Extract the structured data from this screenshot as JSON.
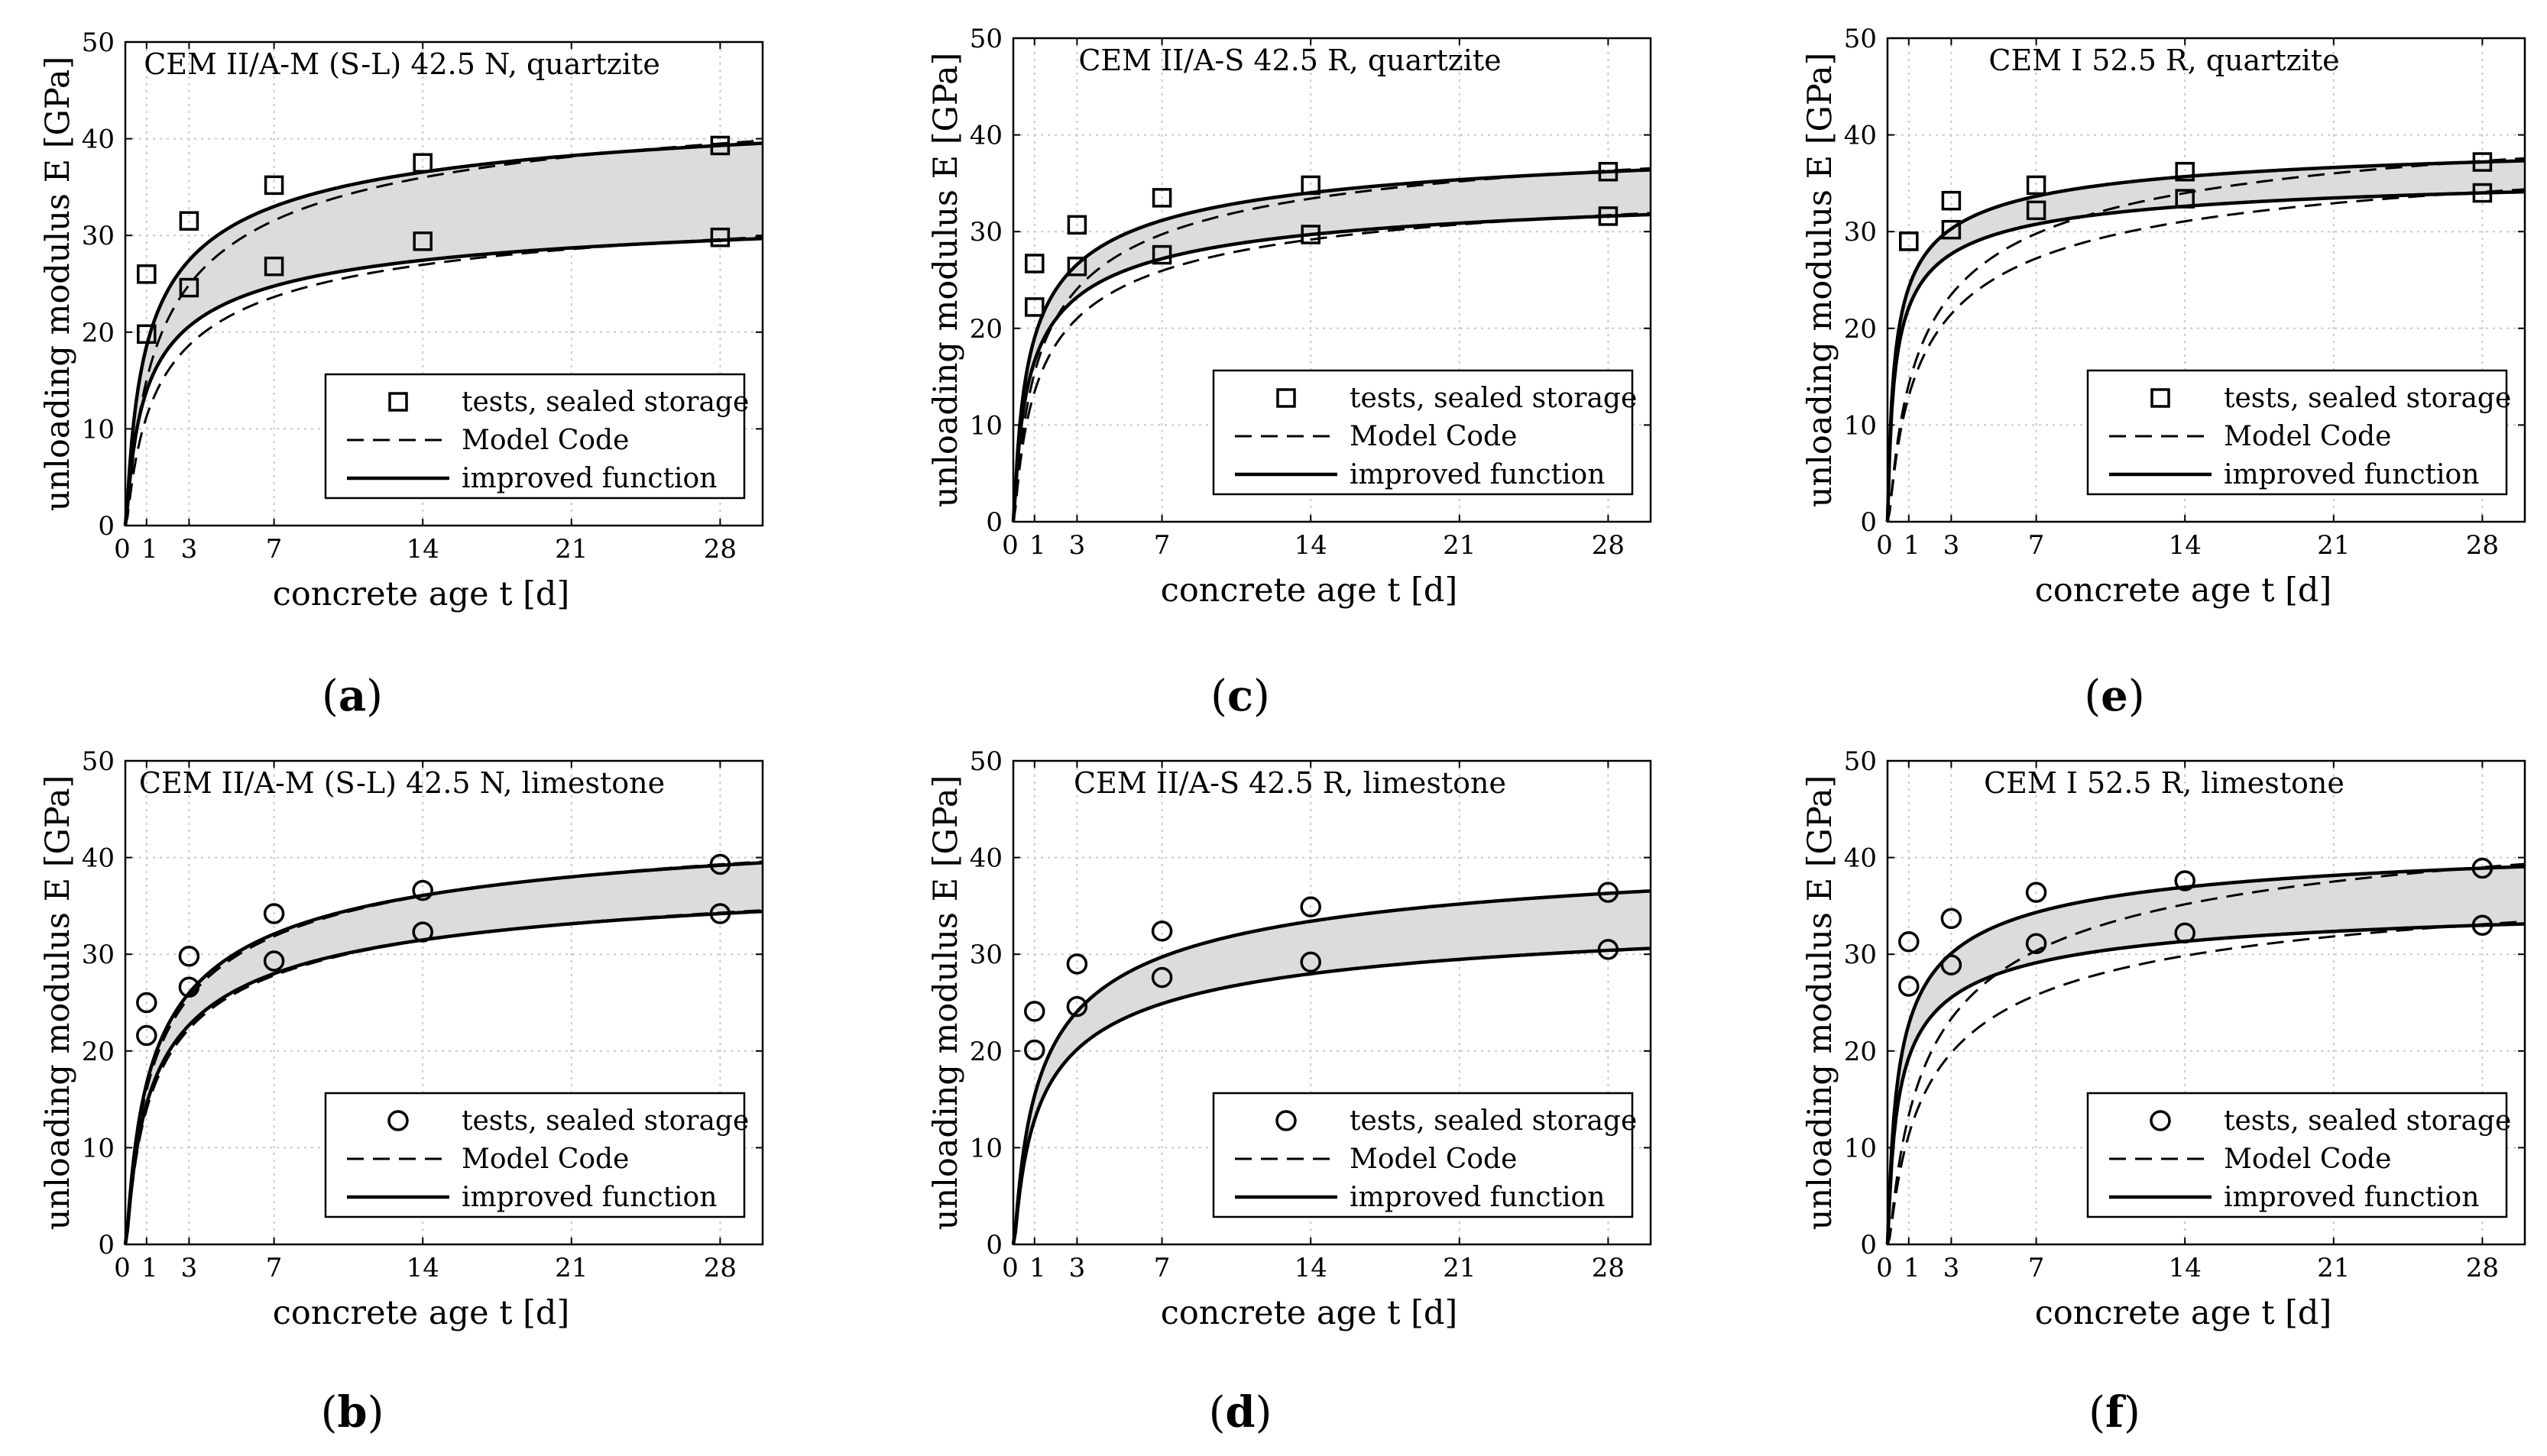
{
  "figure": {
    "legend_labels": {
      "tests": "tests, sealed storage",
      "model_code": "Model Code",
      "improved": "improved function"
    }
  },
  "chart_data": [
    {
      "id": "a",
      "type": "line",
      "panel_label": "(a)",
      "label_letter": "a",
      "title": "CEM II/A-M (S-L) 42.5 N, quartzite",
      "xlabel": "concrete age t [d]",
      "ylabel": "unloading modulus E [GPa]",
      "xlim": [
        0,
        30
      ],
      "ylim": [
        0,
        50
      ],
      "xticks": [
        0,
        1,
        3,
        7,
        14,
        21,
        28
      ],
      "yticks": [
        0,
        10,
        20,
        30,
        40,
        50
      ],
      "grid": true,
      "legend_position": "lower-right",
      "marker": "square",
      "series": [
        {
          "name": "tests, sealed storage (upper)",
          "x": [
            1,
            3,
            7,
            14,
            28
          ],
          "y": [
            26,
            31.5,
            35.2,
            37.5,
            39.3
          ]
        },
        {
          "name": "tests, sealed storage (lower)",
          "x": [
            1,
            3,
            7,
            14,
            28
          ],
          "y": [
            19.8,
            24.6,
            26.8,
            29.4,
            29.8
          ]
        }
      ],
      "curves": {
        "improved": [
          {
            "E28": 39.3,
            "s": 0.35
          },
          {
            "E28": 29.5,
            "s": 0.35
          }
        ],
        "model_code": [
          {
            "E28": 39.5,
            "s": 0.45
          },
          {
            "E28": 29.6,
            "s": 0.45
          }
        ]
      }
    },
    {
      "id": "c",
      "type": "line",
      "panel_label": "(c)",
      "label_letter": "c",
      "title": "CEM II/A-S 42.5 R, quartzite",
      "xlabel": "concrete age t [d]",
      "ylabel": "unloading modulus E [GPa]",
      "xlim": [
        0,
        30
      ],
      "ylim": [
        0,
        50
      ],
      "xticks": [
        0,
        1,
        3,
        7,
        14,
        21,
        28
      ],
      "yticks": [
        0,
        10,
        20,
        30,
        40,
        50
      ],
      "grid": true,
      "legend_position": "lower-right",
      "marker": "square",
      "series": [
        {
          "name": "tests, sealed storage (upper)",
          "x": [
            1,
            3,
            7,
            14,
            28
          ],
          "y": [
            26.7,
            30.7,
            33.5,
            34.8,
            36.2
          ]
        },
        {
          "name": "tests, sealed storage (lower)",
          "x": [
            1,
            3,
            7,
            14,
            28
          ],
          "y": [
            22.2,
            26.4,
            27.6,
            29.7,
            31.6
          ]
        }
      ],
      "curves": {
        "improved": [
          {
            "E28": 36.2,
            "s": 0.3
          },
          {
            "E28": 31.6,
            "s": 0.3
          }
        ],
        "model_code": [
          {
            "E28": 36.3,
            "s": 0.4
          },
          {
            "E28": 31.7,
            "s": 0.4
          }
        ]
      }
    },
    {
      "id": "e",
      "type": "line",
      "panel_label": "(e)",
      "label_letter": "e",
      "title": "CEM I 52.5 R, quartzite",
      "xlabel": "concrete age t [d]",
      "ylabel": "unloading modulus E [GPa]",
      "xlim": [
        0,
        30
      ],
      "ylim": [
        0,
        50
      ],
      "xticks": [
        0,
        1,
        3,
        7,
        14,
        21,
        28
      ],
      "yticks": [
        0,
        10,
        20,
        30,
        40,
        50
      ],
      "grid": true,
      "legend_position": "lower-right",
      "marker": "square",
      "series": [
        {
          "name": "tests, sealed storage (upper)",
          "x": [
            1,
            3,
            7,
            14,
            28
          ],
          "y": [
            29,
            33.2,
            34.8,
            36.2,
            37.2
          ]
        },
        {
          "name": "tests, sealed storage (lower)",
          "x": [
            1,
            3,
            7,
            14,
            28
          ],
          "y": [
            29,
            30.2,
            32.2,
            33.4,
            34
          ]
        }
      ],
      "curves": {
        "improved": [
          {
            "E28": 37.2,
            "s": 0.2
          },
          {
            "E28": 34.0,
            "s": 0.2
          }
        ],
        "model_code": [
          {
            "E28": 37.3,
            "s": 0.45
          },
          {
            "E28": 34.1,
            "s": 0.45
          }
        ]
      }
    },
    {
      "id": "b",
      "type": "line",
      "panel_label": "(b)",
      "label_letter": "b",
      "title": "CEM II/A-M (S-L) 42.5 N, limestone",
      "xlabel": "concrete age t [d]",
      "ylabel": "unloading modulus E [GPa]",
      "xlim": [
        0,
        30
      ],
      "ylim": [
        0,
        50
      ],
      "xticks": [
        0,
        1,
        3,
        7,
        14,
        21,
        28
      ],
      "yticks": [
        0,
        10,
        20,
        30,
        40,
        50
      ],
      "grid": true,
      "legend_position": "lower-right",
      "marker": "circle",
      "series": [
        {
          "name": "tests, sealed storage (upper)",
          "x": [
            1,
            3,
            7,
            14,
            28
          ],
          "y": [
            25,
            29.8,
            34.2,
            36.6,
            39.3
          ]
        },
        {
          "name": "tests, sealed storage (lower)",
          "x": [
            1,
            3,
            7,
            14,
            28
          ],
          "y": [
            21.6,
            26.6,
            29.3,
            32.3,
            34.2
          ]
        }
      ],
      "curves": {
        "improved": [
          {
            "E28": 39.2,
            "s": 0.4
          },
          {
            "E28": 34.2,
            "s": 0.4
          }
        ],
        "model_code": [
          {
            "E28": 39.3,
            "s": 0.42
          },
          {
            "E28": 34.3,
            "s": 0.42
          }
        ]
      }
    },
    {
      "id": "d",
      "type": "line",
      "panel_label": "(d)",
      "label_letter": "d",
      "title": "CEM II/A-S 42.5 R, limestone",
      "xlabel": "concrete age t [d]",
      "ylabel": "unloading modulus E [GPa]",
      "xlim": [
        0,
        30
      ],
      "ylim": [
        0,
        50
      ],
      "xticks": [
        0,
        1,
        3,
        7,
        14,
        21,
        28
      ],
      "yticks": [
        0,
        10,
        20,
        30,
        40,
        50
      ],
      "grid": true,
      "legend_position": "lower-right",
      "marker": "circle",
      "series": [
        {
          "name": "tests, sealed storage (upper)",
          "x": [
            1,
            3,
            7,
            14,
            28
          ],
          "y": [
            24.1,
            29,
            32.4,
            34.9,
            36.4
          ]
        },
        {
          "name": "tests, sealed storage (lower)",
          "x": [
            1,
            3,
            7,
            14,
            28
          ],
          "y": [
            20.1,
            24.6,
            27.6,
            29.2,
            30.5
          ]
        }
      ],
      "curves": {
        "improved": [
          {
            "E28": 36.3,
            "s": 0.4
          },
          {
            "E28": 30.4,
            "s": 0.4
          }
        ],
        "model_code": [
          {
            "E28": 36.3,
            "s": 0.4
          },
          {
            "E28": 30.4,
            "s": 0.4
          }
        ]
      }
    },
    {
      "id": "f",
      "type": "line",
      "panel_label": "(f)",
      "label_letter": "f",
      "title": "CEM I 52.5 R, limestone",
      "xlabel": "concrete age t [d]",
      "ylabel": "unloading modulus E [GPa]",
      "xlim": [
        0,
        30
      ],
      "ylim": [
        0,
        50
      ],
      "xticks": [
        0,
        1,
        3,
        7,
        14,
        21,
        28
      ],
      "yticks": [
        0,
        10,
        20,
        30,
        40,
        50
      ],
      "grid": true,
      "legend_position": "lower-right",
      "marker": "circle",
      "series": [
        {
          "name": "tests, sealed storage (upper)",
          "x": [
            1,
            3,
            7,
            14,
            28
          ],
          "y": [
            31.3,
            33.7,
            36.4,
            37.6,
            38.9
          ]
        },
        {
          "name": "tests, sealed storage (lower)",
          "x": [
            1,
            3,
            7,
            14,
            28
          ],
          "y": [
            26.7,
            28.9,
            31.1,
            32.2,
            33
          ]
        }
      ],
      "curves": {
        "improved": [
          {
            "E28": 38.9,
            "s": 0.25
          },
          {
            "E28": 33.0,
            "s": 0.25
          }
        ],
        "model_code": [
          {
            "E28": 39.0,
            "s": 0.5
          },
          {
            "E28": 33.1,
            "s": 0.5
          }
        ]
      }
    }
  ]
}
